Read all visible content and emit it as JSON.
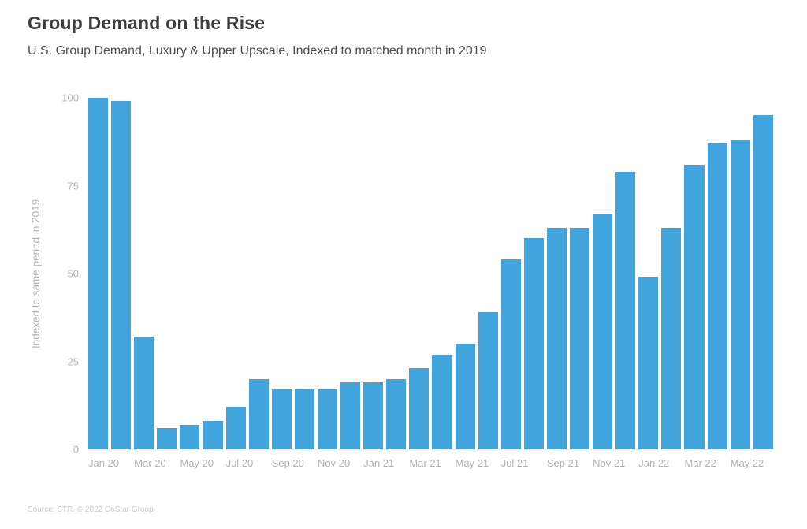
{
  "header": {
    "title": "Group Demand on the Rise",
    "subtitle": "U.S. Group Demand, Luxury & Upper Upscale, Indexed to matched month in 2019"
  },
  "footer": {
    "source": "Source: STR. © 2022 CoStar Group"
  },
  "colors": {
    "bar": "#41a4dc",
    "title": "#3e3e3e",
    "subtitle": "#4e4e4e",
    "axis_text": "#b5b5b5",
    "source_text": "#c9c9c9",
    "background": "#ffffff"
  },
  "chart_data": {
    "type": "bar",
    "title": "Group Demand on the Rise",
    "subtitle": "U.S. Group Demand, Luxury & Upper Upscale, Indexed to matched month in 2019",
    "categories": [
      "Jan 20",
      "Feb 20",
      "Mar 20",
      "Apr 20",
      "May 20",
      "Jun 20",
      "Jul 20",
      "Aug 20",
      "Sep 20",
      "Oct 20",
      "Nov 20",
      "Dec 20",
      "Jan 21",
      "Feb 21",
      "Mar 21",
      "Apr 21",
      "May 21",
      "Jun 21",
      "Jul 21",
      "Aug 21",
      "Sep 21",
      "Oct 21",
      "Nov 21",
      "Dec 21",
      "Jan 22",
      "Feb 22",
      "Mar 22",
      "Apr 22",
      "May 22",
      "Jun 22"
    ],
    "values": [
      100,
      99,
      32,
      6,
      7,
      8,
      12,
      20,
      17,
      17,
      17,
      19,
      19,
      20,
      23,
      27,
      30,
      39,
      54,
      60,
      63,
      63,
      67,
      79,
      49,
      63,
      81,
      87,
      88,
      95
    ],
    "x_tick_labels": [
      "Jan 20",
      "Mar 20",
      "May 20",
      "Jul 20",
      "Sep 20",
      "Nov 20",
      "Jan 21",
      "Mar 21",
      "May 21",
      "Jul 21",
      "Sep 21",
      "Nov 21",
      "Jan 22",
      "Mar 22",
      "May 22"
    ],
    "x_tick_every": 2,
    "xlabel": "",
    "ylabel": "Indexed to same period in 2019",
    "y_ticks": [
      0,
      25,
      50,
      75,
      100
    ],
    "ylim": [
      0,
      100
    ],
    "bar_color": "#41a4dc",
    "grid": false,
    "legend_position": "none"
  }
}
